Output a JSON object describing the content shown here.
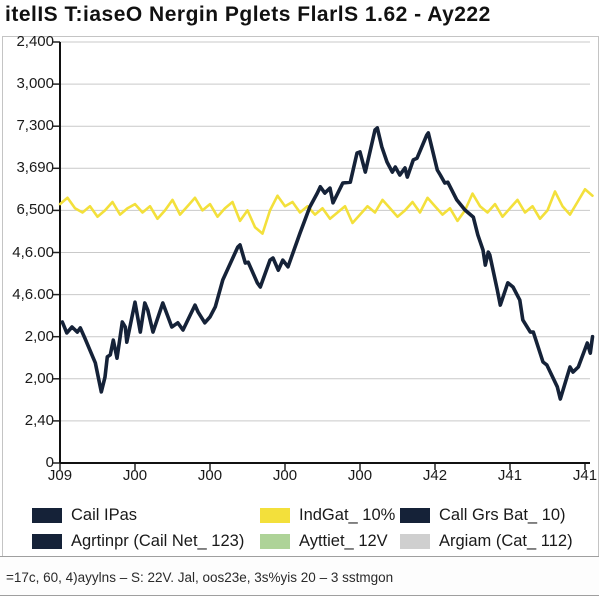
{
  "title": "itelIS T:iaseO Nergin Pglets FlarlS 1.62 - Ay222",
  "footnote": "=17c, 60, 4)ayylns – S: 22V. Jal, oos23e, 3s%yis 20 – 3 sstmgon",
  "colors": {
    "navy": "#152238",
    "yellow": "#f3e03b",
    "green": "#aed398",
    "gray": "#cfcfcf",
    "grid": "#c9c9c9",
    "axis": "#111111",
    "frame": "#c4c4c4"
  },
  "legend": {
    "items": [
      {
        "label": "Cail IPas",
        "color": "#152238"
      },
      {
        "label": "IndGat_ 10%",
        "color": "#f3e03b"
      },
      {
        "label": "Call Grs Bat_ 10)",
        "color": "#152238"
      },
      {
        "label": "Agrtinpr (Cail Net_ 123)",
        "color": "#152238"
      },
      {
        "label": "Ayttiet_ 12V",
        "color": "#aed398"
      },
      {
        "label": "Argiam (Cat_ 112)",
        "color": "#cfcfcf"
      }
    ]
  },
  "chart_data": {
    "type": "line",
    "title": "itelIS T:iaseO Nergin Pglets FlarlS 1.62 - Ay222",
    "xlabel": "",
    "ylabel": "",
    "grid": true,
    "legend_position": "bottom",
    "x_tick_labels": [
      "J09",
      "J00",
      "J00",
      "J00",
      "J00",
      "J42",
      "J41",
      "J41"
    ],
    "y_tick_labels": [
      "2,400",
      "3,000",
      "7,300",
      "3,690",
      "6,500",
      "4,6.00",
      "4,6.00",
      "2,00",
      "2,00",
      "2,40",
      "0"
    ],
    "x_range": [
      0,
      7.1
    ],
    "y_range": [
      0,
      10
    ],
    "series": [
      {
        "name": "IndGat_ 10%",
        "color": "#f3e03b",
        "width": 2.6,
        "x_start": 0,
        "x_step": 0.1,
        "values": [
          6.15,
          6.3,
          6.05,
          5.95,
          6.1,
          5.85,
          6.0,
          6.2,
          5.9,
          6.05,
          6.15,
          5.95,
          6.1,
          5.8,
          6.0,
          6.25,
          5.9,
          6.1,
          6.3,
          6.0,
          6.15,
          5.85,
          6.05,
          6.2,
          5.75,
          6.0,
          5.6,
          5.45,
          6.0,
          6.35,
          6.1,
          6.2,
          5.95,
          6.1,
          5.9,
          6.05,
          5.8,
          5.95,
          6.1,
          5.7,
          5.9,
          6.1,
          5.95,
          6.25,
          6.05,
          5.85,
          6.0,
          6.2,
          5.95,
          6.3,
          6.1,
          5.9,
          6.05,
          5.75,
          6.0,
          6.4,
          6.1,
          5.95,
          6.15,
          5.85,
          6.05,
          6.25,
          5.95,
          6.1,
          5.8,
          6.0,
          6.45,
          6.1,
          5.9,
          6.2,
          6.5,
          6.35
        ]
      },
      {
        "name": "Cail IPas",
        "color": "#152238",
        "width": 3.6,
        "points": [
          [
            0.03,
            3.35
          ],
          [
            0.09,
            3.09
          ],
          [
            0.16,
            3.23
          ],
          [
            0.23,
            3.11
          ],
          [
            0.27,
            3.21
          ],
          [
            0.33,
            2.97
          ],
          [
            0.47,
            2.38
          ],
          [
            0.55,
            1.69
          ],
          [
            0.6,
            2.04
          ],
          [
            0.63,
            2.52
          ],
          [
            0.67,
            2.57
          ],
          [
            0.71,
            2.92
          ],
          [
            0.76,
            2.49
          ],
          [
            0.83,
            3.35
          ],
          [
            0.87,
            3.23
          ],
          [
            0.89,
            2.87
          ],
          [
            1.0,
            3.82
          ],
          [
            1.07,
            3.11
          ],
          [
            1.13,
            3.8
          ],
          [
            1.17,
            3.63
          ],
          [
            1.24,
            3.11
          ],
          [
            1.37,
            3.8
          ],
          [
            1.49,
            3.23
          ],
          [
            1.57,
            3.33
          ],
          [
            1.64,
            3.16
          ],
          [
            1.8,
            3.75
          ],
          [
            1.84,
            3.59
          ],
          [
            1.93,
            3.33
          ],
          [
            2.0,
            3.47
          ],
          [
            2.07,
            3.71
          ],
          [
            2.17,
            4.35
          ],
          [
            2.37,
            5.13
          ],
          [
            2.4,
            5.18
          ],
          [
            2.47,
            4.75
          ],
          [
            2.51,
            4.77
          ],
          [
            2.63,
            4.28
          ],
          [
            2.67,
            4.18
          ],
          [
            2.8,
            4.82
          ],
          [
            2.84,
            4.87
          ],
          [
            2.91,
            4.58
          ],
          [
            2.97,
            4.82
          ],
          [
            3.04,
            4.66
          ],
          [
            3.2,
            5.46
          ],
          [
            3.33,
            6.08
          ],
          [
            3.43,
            6.41
          ],
          [
            3.47,
            6.56
          ],
          [
            3.53,
            6.41
          ],
          [
            3.6,
            6.53
          ],
          [
            3.64,
            6.18
          ],
          [
            3.77,
            6.65
          ],
          [
            3.87,
            6.67
          ],
          [
            3.96,
            7.36
          ],
          [
            4.0,
            7.39
          ],
          [
            4.07,
            6.91
          ],
          [
            4.2,
            7.91
          ],
          [
            4.23,
            7.96
          ],
          [
            4.29,
            7.51
          ],
          [
            4.36,
            7.15
          ],
          [
            4.43,
            6.91
          ],
          [
            4.47,
            7.03
          ],
          [
            4.53,
            6.84
          ],
          [
            4.6,
            7.01
          ],
          [
            4.63,
            6.79
          ],
          [
            4.71,
            7.2
          ],
          [
            4.76,
            7.24
          ],
          [
            4.89,
            7.79
          ],
          [
            4.91,
            7.84
          ],
          [
            5.03,
            6.96
          ],
          [
            5.07,
            6.84
          ],
          [
            5.13,
            6.65
          ],
          [
            5.17,
            6.67
          ],
          [
            5.29,
            6.25
          ],
          [
            5.4,
            6.01
          ],
          [
            5.51,
            5.84
          ],
          [
            5.57,
            5.42
          ],
          [
            5.64,
            5.06
          ],
          [
            5.67,
            4.7
          ],
          [
            5.71,
            5.01
          ],
          [
            5.73,
            4.94
          ],
          [
            5.83,
            4.11
          ],
          [
            5.87,
            3.75
          ],
          [
            5.97,
            4.28
          ],
          [
            6.04,
            4.18
          ],
          [
            6.13,
            3.87
          ],
          [
            6.17,
            3.4
          ],
          [
            6.27,
            3.11
          ],
          [
            6.31,
            3.11
          ],
          [
            6.44,
            2.4
          ],
          [
            6.49,
            2.33
          ],
          [
            6.63,
            1.81
          ],
          [
            6.67,
            1.52
          ],
          [
            6.8,
            2.28
          ],
          [
            6.84,
            2.16
          ],
          [
            6.91,
            2.28
          ],
          [
            7.03,
            2.85
          ],
          [
            7.07,
            2.61
          ],
          [
            7.1,
            3.0
          ]
        ]
      }
    ]
  }
}
